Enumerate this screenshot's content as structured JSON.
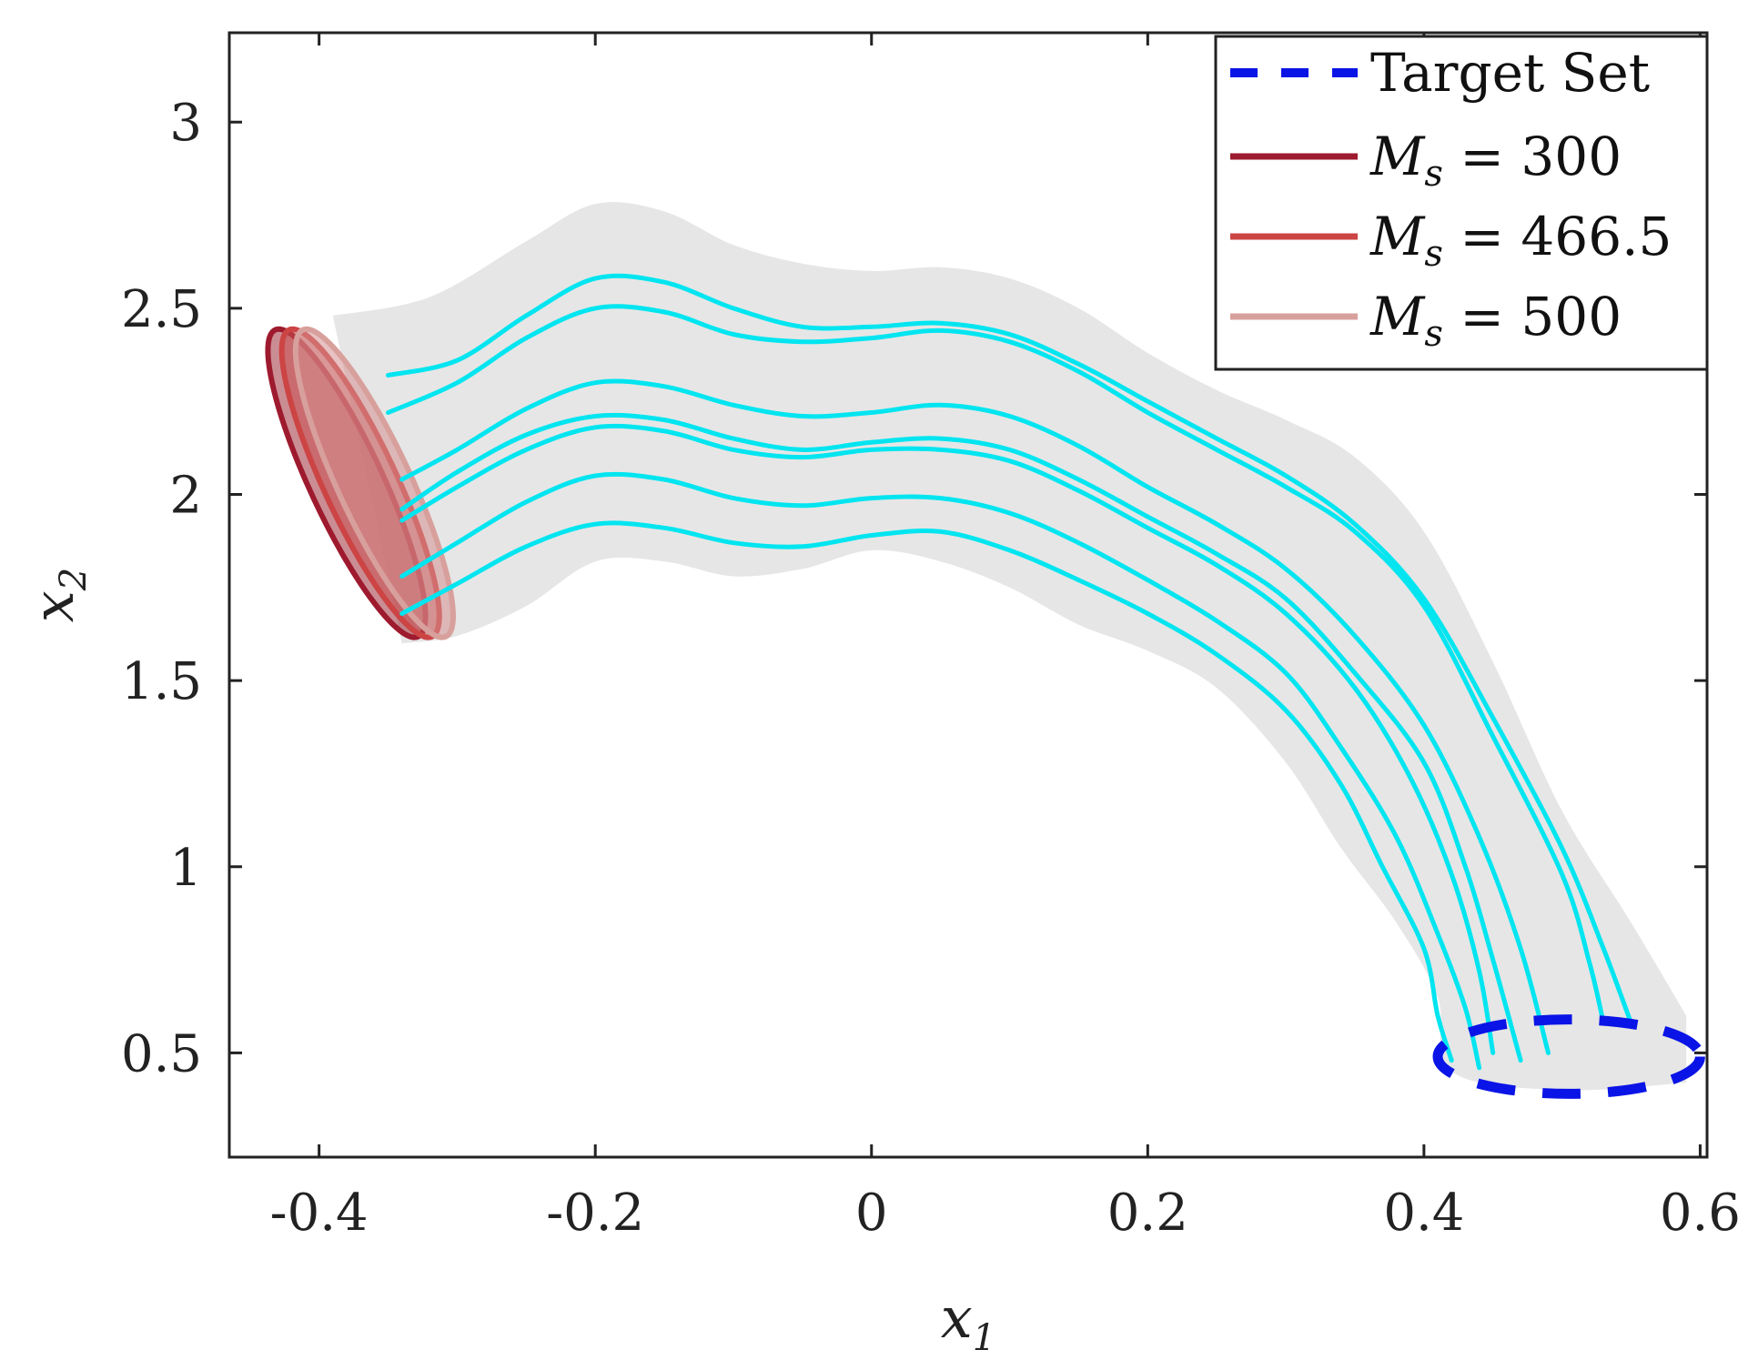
{
  "chart_data": {
    "type": "line",
    "title": "",
    "xlabel": "x",
    "xlabel_sub": "1",
    "ylabel": "x",
    "ylabel_sub": "2",
    "xlim": [
      -0.465,
      0.605
    ],
    "ylim": [
      0.22,
      3.24
    ],
    "xticks": [
      -0.4,
      -0.2,
      0,
      0.2,
      0.4,
      0.6
    ],
    "xtick_labels": [
      "-0.4",
      "-0.2",
      "0",
      "0.2",
      "0.4",
      "0.6"
    ],
    "yticks": [
      0.5,
      1,
      1.5,
      2,
      2.5,
      3
    ],
    "ytick_labels": [
      "0.5",
      "1",
      "1.5",
      "2",
      "2.5",
      "3"
    ],
    "legend": {
      "position": "top-right",
      "entries": [
        {
          "label": "Target Set",
          "style": "dashed",
          "color": "#0a14e6"
        },
        {
          "label_var": "M",
          "label_sub": "s",
          "label_value": " = 300",
          "style": "solid",
          "color": "#9e1a2e"
        },
        {
          "label_var": "M",
          "label_sub": "s",
          "label_value": " = 466.5",
          "style": "solid",
          "color": "#cc4444"
        },
        {
          "label_var": "M",
          "label_sub": "s",
          "label_value": " = 500",
          "style": "solid",
          "color": "#d8a09c"
        }
      ]
    },
    "band": {
      "color": "#e6e6e6",
      "upper": [
        [
          -0.39,
          2.48
        ],
        [
          -0.32,
          2.53
        ],
        [
          -0.25,
          2.68
        ],
        [
          -0.2,
          2.78
        ],
        [
          -0.15,
          2.76
        ],
        [
          -0.1,
          2.67
        ],
        [
          -0.05,
          2.62
        ],
        [
          0,
          2.6
        ],
        [
          0.05,
          2.61
        ],
        [
          0.1,
          2.58
        ],
        [
          0.15,
          2.5
        ],
        [
          0.2,
          2.38
        ],
        [
          0.25,
          2.28
        ],
        [
          0.3,
          2.2
        ],
        [
          0.35,
          2.1
        ],
        [
          0.4,
          1.9
        ],
        [
          0.45,
          1.55
        ],
        [
          0.5,
          1.15
        ],
        [
          0.55,
          0.85
        ],
        [
          0.59,
          0.6
        ]
      ],
      "lower": [
        [
          0.59,
          0.42
        ],
        [
          0.5,
          0.4
        ],
        [
          0.42,
          0.45
        ],
        [
          0.41,
          0.65
        ],
        [
          0.38,
          0.85
        ],
        [
          0.34,
          1.05
        ],
        [
          0.3,
          1.28
        ],
        [
          0.25,
          1.48
        ],
        [
          0.2,
          1.58
        ],
        [
          0.15,
          1.65
        ],
        [
          0.1,
          1.75
        ],
        [
          0.05,
          1.82
        ],
        [
          0,
          1.85
        ],
        [
          -0.05,
          1.8
        ],
        [
          -0.1,
          1.78
        ],
        [
          -0.15,
          1.82
        ],
        [
          -0.2,
          1.82
        ],
        [
          -0.25,
          1.7
        ],
        [
          -0.3,
          1.62
        ],
        [
          -0.34,
          1.6
        ]
      ]
    },
    "target_set": {
      "center": [
        0.505,
        0.49
      ],
      "radii": [
        0.095,
        0.1
      ],
      "color": "#0a14e6"
    },
    "initial_sets": [
      {
        "label": "M_s = 300",
        "center": [
          -0.38,
          2.03
        ],
        "color": "#9e1a2e",
        "fill": "#a0303c"
      },
      {
        "label": "M_s = 466.5",
        "center": [
          -0.37,
          2.03
        ],
        "color": "#cc4444",
        "fill": "#c85050"
      },
      {
        "label": "M_s = 500",
        "center": [
          -0.36,
          2.03
        ],
        "color": "#d8a09c",
        "fill": "#d69090"
      }
    ],
    "trajectory_color": "#00e5f0",
    "series": [
      {
        "name": "traj-1",
        "points": [
          [
            -0.35,
            2.32
          ],
          [
            -0.3,
            2.36
          ],
          [
            -0.25,
            2.48
          ],
          [
            -0.2,
            2.58
          ],
          [
            -0.15,
            2.57
          ],
          [
            -0.1,
            2.5
          ],
          [
            -0.05,
            2.45
          ],
          [
            0,
            2.45
          ],
          [
            0.05,
            2.46
          ],
          [
            0.1,
            2.43
          ],
          [
            0.15,
            2.35
          ],
          [
            0.2,
            2.25
          ],
          [
            0.25,
            2.15
          ],
          [
            0.3,
            2.05
          ],
          [
            0.35,
            1.92
          ],
          [
            0.4,
            1.72
          ],
          [
            0.45,
            1.4
          ],
          [
            0.5,
            1.05
          ],
          [
            0.53,
            0.78
          ],
          [
            0.55,
            0.58
          ]
        ]
      },
      {
        "name": "traj-2",
        "points": [
          [
            -0.35,
            2.22
          ],
          [
            -0.3,
            2.3
          ],
          [
            -0.25,
            2.42
          ],
          [
            -0.2,
            2.5
          ],
          [
            -0.15,
            2.49
          ],
          [
            -0.1,
            2.43
          ],
          [
            -0.05,
            2.41
          ],
          [
            0,
            2.42
          ],
          [
            0.05,
            2.44
          ],
          [
            0.1,
            2.41
          ],
          [
            0.15,
            2.33
          ],
          [
            0.2,
            2.22
          ],
          [
            0.25,
            2.12
          ],
          [
            0.3,
            2.02
          ],
          [
            0.35,
            1.9
          ],
          [
            0.4,
            1.7
          ],
          [
            0.45,
            1.35
          ],
          [
            0.5,
            0.98
          ],
          [
            0.52,
            0.74
          ],
          [
            0.53,
            0.58
          ]
        ]
      },
      {
        "name": "traj-3",
        "points": [
          [
            -0.34,
            2.04
          ],
          [
            -0.3,
            2.12
          ],
          [
            -0.25,
            2.23
          ],
          [
            -0.2,
            2.3
          ],
          [
            -0.15,
            2.29
          ],
          [
            -0.1,
            2.24
          ],
          [
            -0.05,
            2.21
          ],
          [
            0,
            2.22
          ],
          [
            0.05,
            2.24
          ],
          [
            0.1,
            2.21
          ],
          [
            0.15,
            2.13
          ],
          [
            0.2,
            2.02
          ],
          [
            0.25,
            1.92
          ],
          [
            0.3,
            1.8
          ],
          [
            0.35,
            1.62
          ],
          [
            0.4,
            1.38
          ],
          [
            0.44,
            1.08
          ],
          [
            0.47,
            0.78
          ],
          [
            0.49,
            0.5
          ]
        ]
      },
      {
        "name": "traj-4",
        "points": [
          [
            -0.34,
            1.96
          ],
          [
            -0.3,
            2.06
          ],
          [
            -0.25,
            2.16
          ],
          [
            -0.2,
            2.21
          ],
          [
            -0.15,
            2.2
          ],
          [
            -0.1,
            2.15
          ],
          [
            -0.05,
            2.12
          ],
          [
            0,
            2.14
          ],
          [
            0.05,
            2.15
          ],
          [
            0.1,
            2.12
          ],
          [
            0.15,
            2.04
          ],
          [
            0.2,
            1.94
          ],
          [
            0.25,
            1.84
          ],
          [
            0.3,
            1.72
          ],
          [
            0.35,
            1.52
          ],
          [
            0.4,
            1.28
          ],
          [
            0.43,
            1.0
          ],
          [
            0.45,
            0.75
          ],
          [
            0.47,
            0.48
          ]
        ]
      },
      {
        "name": "traj-5",
        "points": [
          [
            -0.34,
            1.93
          ],
          [
            -0.3,
            2.02
          ],
          [
            -0.25,
            2.12
          ],
          [
            -0.2,
            2.18
          ],
          [
            -0.15,
            2.17
          ],
          [
            -0.1,
            2.12
          ],
          [
            -0.05,
            2.1
          ],
          [
            0,
            2.12
          ],
          [
            0.05,
            2.12
          ],
          [
            0.1,
            2.09
          ],
          [
            0.15,
            2.01
          ],
          [
            0.2,
            1.91
          ],
          [
            0.25,
            1.81
          ],
          [
            0.3,
            1.68
          ],
          [
            0.35,
            1.48
          ],
          [
            0.39,
            1.24
          ],
          [
            0.42,
            0.98
          ],
          [
            0.44,
            0.72
          ],
          [
            0.45,
            0.5
          ]
        ]
      },
      {
        "name": "traj-6",
        "points": [
          [
            -0.34,
            1.78
          ],
          [
            -0.3,
            1.87
          ],
          [
            -0.25,
            1.98
          ],
          [
            -0.2,
            2.05
          ],
          [
            -0.15,
            2.04
          ],
          [
            -0.1,
            1.99
          ],
          [
            -0.05,
            1.97
          ],
          [
            0,
            1.99
          ],
          [
            0.05,
            1.99
          ],
          [
            0.1,
            1.95
          ],
          [
            0.15,
            1.87
          ],
          [
            0.2,
            1.77
          ],
          [
            0.25,
            1.66
          ],
          [
            0.3,
            1.52
          ],
          [
            0.34,
            1.32
          ],
          [
            0.38,
            1.08
          ],
          [
            0.41,
            0.82
          ],
          [
            0.43,
            0.62
          ],
          [
            0.44,
            0.46
          ]
        ]
      },
      {
        "name": "traj-7",
        "points": [
          [
            -0.34,
            1.68
          ],
          [
            -0.3,
            1.76
          ],
          [
            -0.25,
            1.86
          ],
          [
            -0.2,
            1.92
          ],
          [
            -0.15,
            1.91
          ],
          [
            -0.1,
            1.87
          ],
          [
            -0.05,
            1.86
          ],
          [
            0,
            1.89
          ],
          [
            0.05,
            1.9
          ],
          [
            0.1,
            1.85
          ],
          [
            0.15,
            1.77
          ],
          [
            0.2,
            1.68
          ],
          [
            0.25,
            1.57
          ],
          [
            0.3,
            1.42
          ],
          [
            0.34,
            1.22
          ],
          [
            0.37,
            1.0
          ],
          [
            0.4,
            0.78
          ],
          [
            0.41,
            0.6
          ],
          [
            0.42,
            0.48
          ]
        ]
      }
    ]
  }
}
